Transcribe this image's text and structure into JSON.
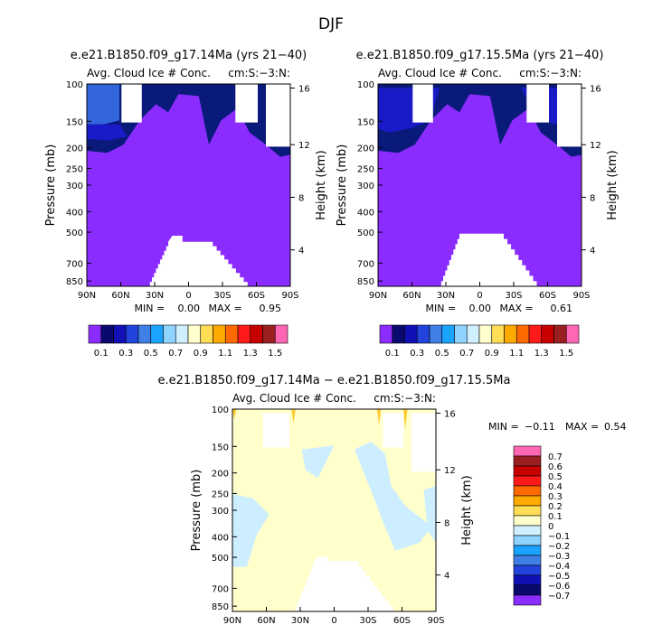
{
  "figure_title": "DJF",
  "colors": {
    "c_lt_neg01": "#9933ff",
    "c_01_03": "#0a1a7a",
    "c_03_05": "#1a1ac8",
    "c_05_07": "#3366dd",
    "c_07_09": "#1a8ff0",
    "pale_blue": "#cceeff",
    "pale_yellow": "#ffffcc",
    "gold": "#ffcc33",
    "diff_neg": "#cceeff"
  },
  "top_scale": {
    "labels": [
      "0.1",
      "0.3",
      "0.5",
      "0.7",
      "0.9",
      "1.1",
      "1.3",
      "1.5"
    ],
    "colors": [
      "#8b2cff",
      "#0a0a6e",
      "#1010b4",
      "#2244dd",
      "#3f7fe6",
      "#1aa3ff",
      "#8fd3ff",
      "#d0f0ff",
      "#ffffcc",
      "#ffdd55",
      "#ffaa00",
      "#ff6a00",
      "#ff1a1a",
      "#c80000",
      "#9a1f1f",
      "#ff66b3"
    ]
  },
  "diff_scale": {
    "labels": [
      "0.7",
      "0.6",
      "0.5",
      "0.4",
      "0.3",
      "0.2",
      "0.1",
      "0",
      "−0.1",
      "−0.2",
      "−0.3",
      "−0.4",
      "−0.5",
      "−0.6",
      "−0.7"
    ],
    "colors": [
      "#ff66b3",
      "#9a1f1f",
      "#c80000",
      "#ff1a1a",
      "#ff6a00",
      "#ffaa00",
      "#ffdd55",
      "#ffffcc",
      "#d0f0ff",
      "#8fd3ff",
      "#1aa3ff",
      "#3f7fe6",
      "#2244dd",
      "#1010b4",
      "#0a0a6e",
      "#8b2cff"
    ]
  },
  "chart_data": [
    {
      "type": "heatmap",
      "title": "e.e21.B1850.f09_g17.14Ma (yrs 21−40)",
      "subtitle_left": "Avg. Cloud Ice # Conc.",
      "subtitle_right": "cm:S:−3:N:",
      "ylabel": "Pressure (mb)",
      "ylabel_right": "Height (km)",
      "x_ticks": [
        "90N",
        "60N",
        "30N",
        "0",
        "30S",
        "60S",
        "90S"
      ],
      "y_ticks": [
        "100",
        "150",
        "200",
        "250",
        "300",
        "400",
        "500",
        "700",
        "850"
      ],
      "height_ticks": [
        "16",
        "12",
        "8",
        "4"
      ],
      "stats": {
        "min_label": "MIN =",
        "min": "0.00",
        "max_label": "MAX =",
        "max": "0.95"
      }
    },
    {
      "type": "heatmap",
      "title": "e.e21.B1850.f09_g17.15.5Ma (yrs 21−40)",
      "subtitle_left": "Avg. Cloud Ice # Conc.",
      "subtitle_right": "cm:S:−3:N:",
      "ylabel": "Pressure (mb)",
      "ylabel_right": "Height (km)",
      "x_ticks": [
        "90N",
        "60N",
        "30N",
        "0",
        "30S",
        "60S",
        "90S"
      ],
      "y_ticks": [
        "100",
        "150",
        "200",
        "250",
        "300",
        "400",
        "500",
        "700",
        "850"
      ],
      "height_ticks": [
        "16",
        "12",
        "8",
        "4"
      ],
      "stats": {
        "min_label": "MIN =",
        "min": "0.00",
        "max_label": "MAX =",
        "max": "0.61"
      }
    },
    {
      "type": "heatmap",
      "title": "e.e21.B1850.f09_g17.14Ma − e.e21.B1850.f09_g17.15.5Ma",
      "subtitle_left": "Avg. Cloud Ice # Conc.",
      "subtitle_right": "cm:S:−3:N:",
      "ylabel": "Pressure (mb)",
      "ylabel_right": "Height (km)",
      "x_ticks": [
        "90N",
        "60N",
        "30N",
        "0",
        "30S",
        "60S",
        "90S"
      ],
      "y_ticks": [
        "100",
        "150",
        "200",
        "250",
        "300",
        "400",
        "500",
        "700",
        "850"
      ],
      "height_ticks": [
        "16",
        "12",
        "8",
        "4"
      ],
      "stats": {
        "min_label": "MIN =",
        "min": "−0.11",
        "max_label": "MAX =",
        "max": "0.54"
      }
    }
  ]
}
